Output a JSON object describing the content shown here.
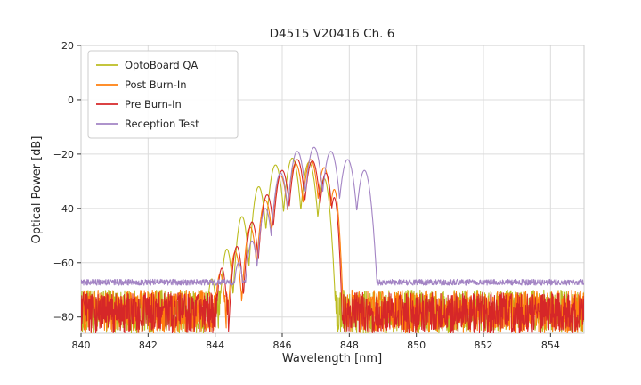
{
  "figure": {
    "background": "#ffffff",
    "grid_color": "#dcdcdc",
    "border_color": "#cccccc",
    "tick_color": "#333333",
    "text_color": "#262626"
  },
  "chart_data": {
    "type": "line",
    "title": "D4515 V20416 Ch. 6",
    "xlabel": "Wavelength [nm]",
    "ylabel": "Optical Power [dB]",
    "xlim": [
      840,
      855
    ],
    "ylim": [
      -86,
      20
    ],
    "xticks": [
      840,
      842,
      844,
      846,
      848,
      850,
      852,
      854
    ],
    "yticks": [
      20,
      0,
      -20,
      -40,
      -60,
      -80
    ],
    "grid": true,
    "legend_position": "upper-left",
    "mode_rolloff_db": 20,
    "sample_step_nm": 0.01,
    "series": [
      {
        "name": "OptoBoard QA",
        "color": "#bcbd22",
        "noise_center_db": -78,
        "noise_amplitude_db": 8,
        "peaks": [
          {
            "nm": 843.9,
            "db": -66,
            "hw": 0.18
          },
          {
            "nm": 844.35,
            "db": -55,
            "hw": 0.2
          },
          {
            "nm": 844.8,
            "db": -43,
            "hw": 0.22
          },
          {
            "nm": 845.3,
            "db": -32,
            "hw": 0.24
          },
          {
            "nm": 845.8,
            "db": -24,
            "hw": 0.26
          },
          {
            "nm": 846.3,
            "db": -21.5,
            "hw": 0.26
          },
          {
            "nm": 846.8,
            "db": -23,
            "hw": 0.26
          },
          {
            "nm": 847.25,
            "db": -29,
            "hw": 0.22
          }
        ]
      },
      {
        "name": "Post Burn-In",
        "color": "#ff7f0e",
        "noise_center_db": -78,
        "noise_amplitude_db": 8,
        "peaks": [
          {
            "nm": 844.15,
            "db": -64,
            "hw": 0.18
          },
          {
            "nm": 844.6,
            "db": -56,
            "hw": 0.2
          },
          {
            "nm": 845.05,
            "db": -47,
            "hw": 0.22
          },
          {
            "nm": 845.5,
            "db": -37,
            "hw": 0.24
          },
          {
            "nm": 845.95,
            "db": -28,
            "hw": 0.26
          },
          {
            "nm": 846.4,
            "db": -23.5,
            "hw": 0.26
          },
          {
            "nm": 846.85,
            "db": -22,
            "hw": 0.26
          },
          {
            "nm": 847.25,
            "db": -25,
            "hw": 0.24
          },
          {
            "nm": 847.55,
            "db": -33,
            "hw": 0.18
          }
        ]
      },
      {
        "name": "Pre Burn-In",
        "color": "#d62728",
        "noise_center_db": -78.5,
        "noise_amplitude_db": 7.5,
        "peaks": [
          {
            "nm": 844.2,
            "db": -62,
            "hw": 0.18
          },
          {
            "nm": 844.65,
            "db": -54,
            "hw": 0.2
          },
          {
            "nm": 845.1,
            "db": -45,
            "hw": 0.22
          },
          {
            "nm": 845.55,
            "db": -35,
            "hw": 0.24
          },
          {
            "nm": 846.0,
            "db": -26,
            "hw": 0.26
          },
          {
            "nm": 846.45,
            "db": -22,
            "hw": 0.26
          },
          {
            "nm": 846.9,
            "db": -22.5,
            "hw": 0.26
          },
          {
            "nm": 847.3,
            "db": -27,
            "hw": 0.22
          },
          {
            "nm": 847.55,
            "db": -36,
            "hw": 0.16
          }
        ]
      },
      {
        "name": "Reception Test",
        "color": "#a384c4",
        "noise_center_db": -67.2,
        "noise_amplitude_db": 1.1,
        "peaks": [
          {
            "nm": 844.7,
            "db": -60,
            "hw": 0.2
          },
          {
            "nm": 845.1,
            "db": -52,
            "hw": 0.22
          },
          {
            "nm": 845.5,
            "db": -40,
            "hw": 0.24
          },
          {
            "nm": 845.95,
            "db": -27,
            "hw": 0.26
          },
          {
            "nm": 846.45,
            "db": -19,
            "hw": 0.28
          },
          {
            "nm": 846.95,
            "db": -17.5,
            "hw": 0.28
          },
          {
            "nm": 847.45,
            "db": -19,
            "hw": 0.28
          },
          {
            "nm": 847.95,
            "db": -22,
            "hw": 0.28
          },
          {
            "nm": 848.45,
            "db": -26,
            "hw": 0.26
          }
        ]
      }
    ]
  }
}
